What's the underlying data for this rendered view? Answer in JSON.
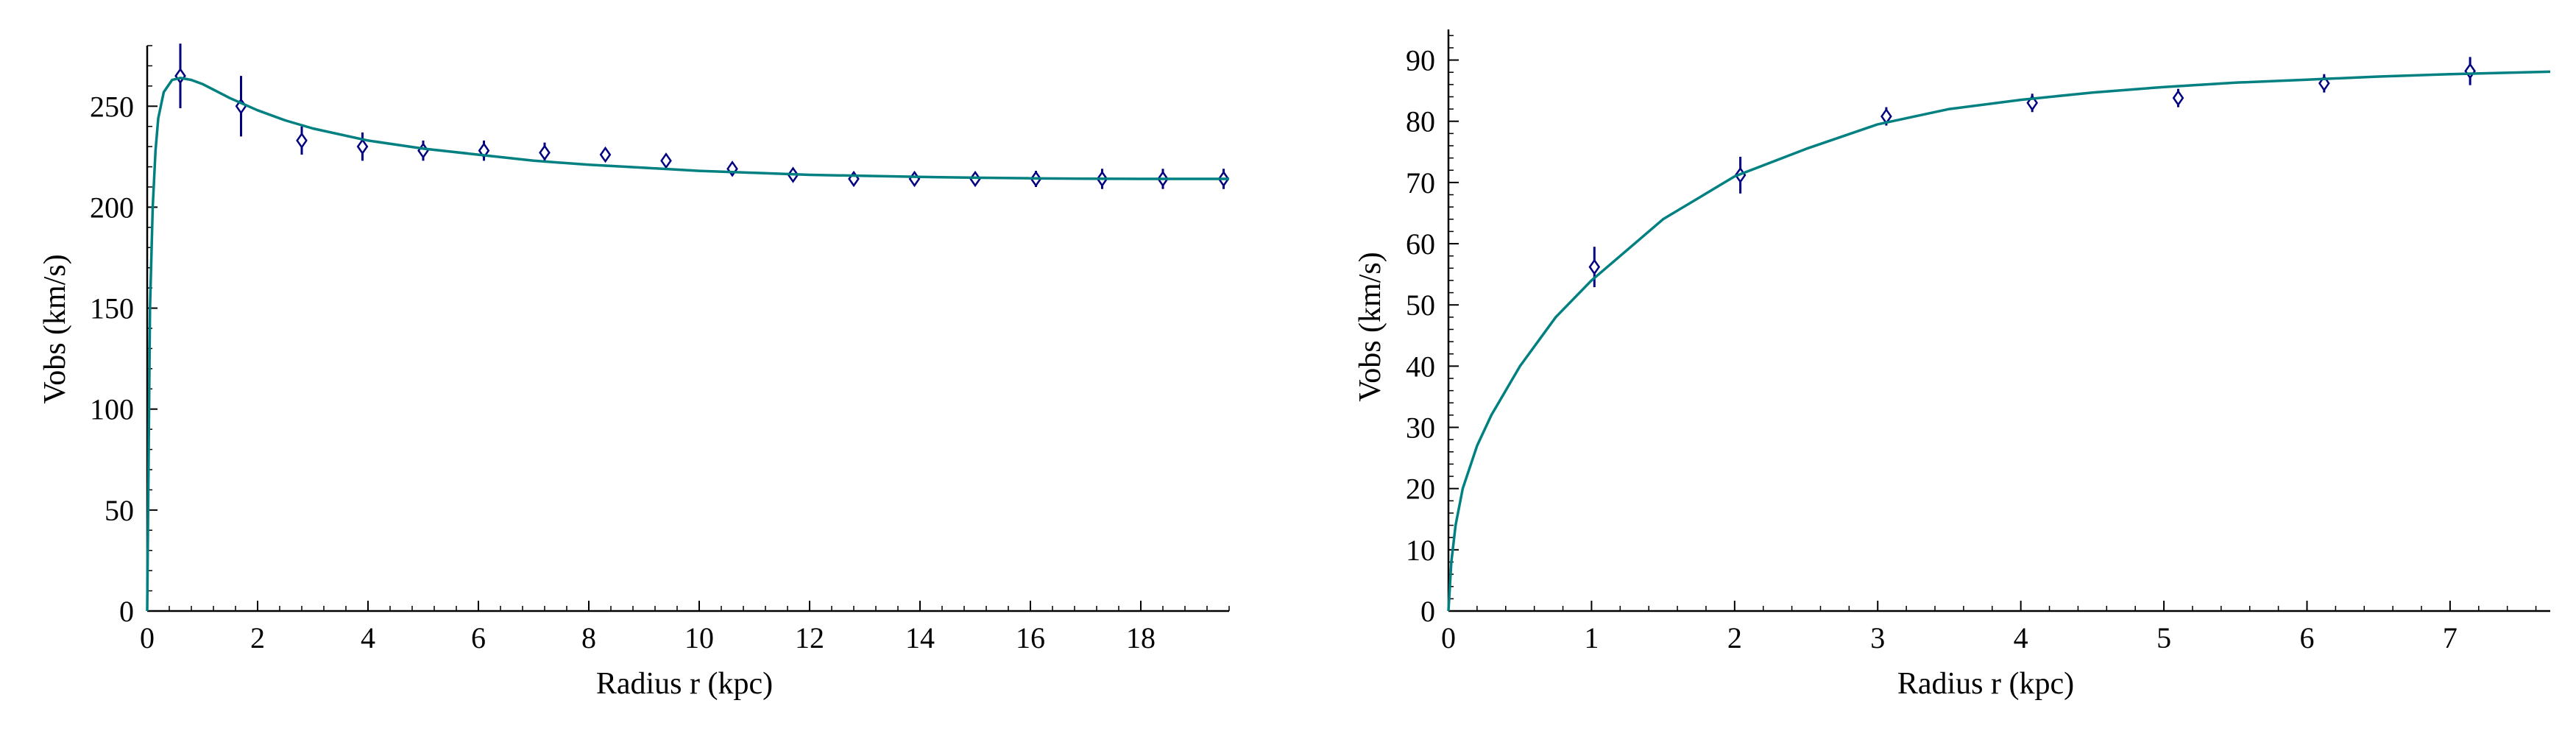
{
  "colors": {
    "fit_curve": "#008080",
    "data_points": "#000080",
    "axes": "#000000"
  },
  "chart_data": [
    {
      "type": "scatter",
      "xlabel": "Radius  r  (kpc)",
      "ylabel": "Vobs  (km/s)",
      "xlim": [
        0,
        19.6
      ],
      "ylim": [
        0,
        280
      ],
      "x_ticks": [
        0,
        2,
        4,
        6,
        8,
        10,
        12,
        14,
        16,
        18
      ],
      "y_ticks": [
        0,
        50,
        100,
        150,
        200,
        250
      ],
      "grid": false,
      "legend": "none",
      "series": [
        {
          "kind": "observed",
          "marker": "diamond",
          "error_bars": true,
          "points": [
            {
              "x": 0.6,
              "y": 265,
              "err": 16
            },
            {
              "x": 1.7,
              "y": 250,
              "err": 15
            },
            {
              "x": 2.8,
              "y": 233,
              "err": 7
            },
            {
              "x": 3.9,
              "y": 230,
              "err": 7
            },
            {
              "x": 5.0,
              "y": 228,
              "err": 5
            },
            {
              "x": 6.1,
              "y": 228,
              "err": 5
            },
            {
              "x": 7.2,
              "y": 227,
              "err": 5
            },
            {
              "x": 8.3,
              "y": 226,
              "err": 2
            },
            {
              "x": 9.4,
              "y": 223,
              "err": 3
            },
            {
              "x": 10.6,
              "y": 219,
              "err": 2
            },
            {
              "x": 11.7,
              "y": 216,
              "err": 2
            },
            {
              "x": 12.8,
              "y": 214,
              "err": 2
            },
            {
              "x": 13.9,
              "y": 214,
              "err": 2
            },
            {
              "x": 15.0,
              "y": 214,
              "err": 3
            },
            {
              "x": 16.1,
              "y": 214,
              "err": 4
            },
            {
              "x": 17.3,
              "y": 214,
              "err": 5
            },
            {
              "x": 18.4,
              "y": 214,
              "err": 5
            },
            {
              "x": 19.5,
              "y": 214,
              "err": 5
            }
          ]
        },
        {
          "kind": "fit",
          "line": true,
          "points": [
            {
              "x": 0,
              "y": 0
            },
            {
              "x": 0.05,
              "y": 150
            },
            {
              "x": 0.1,
              "y": 200
            },
            {
              "x": 0.15,
              "y": 228
            },
            {
              "x": 0.2,
              "y": 244
            },
            {
              "x": 0.3,
              "y": 257
            },
            {
              "x": 0.45,
              "y": 263
            },
            {
              "x": 0.6,
              "y": 264
            },
            {
              "x": 0.8,
              "y": 263
            },
            {
              "x": 1.0,
              "y": 261
            },
            {
              "x": 1.5,
              "y": 254
            },
            {
              "x": 2.0,
              "y": 248
            },
            {
              "x": 2.5,
              "y": 243
            },
            {
              "x": 3.0,
              "y": 239
            },
            {
              "x": 4.0,
              "y": 233
            },
            {
              "x": 5.0,
              "y": 229
            },
            {
              "x": 6.0,
              "y": 226
            },
            {
              "x": 7.0,
              "y": 223
            },
            {
              "x": 8.0,
              "y": 221
            },
            {
              "x": 9.0,
              "y": 219.5
            },
            {
              "x": 10.0,
              "y": 218
            },
            {
              "x": 11.0,
              "y": 217
            },
            {
              "x": 12.0,
              "y": 216
            },
            {
              "x": 13.0,
              "y": 215.5
            },
            {
              "x": 14.0,
              "y": 215
            },
            {
              "x": 15.0,
              "y": 214.6
            },
            {
              "x": 16.0,
              "y": 214.3
            },
            {
              "x": 17.0,
              "y": 214.1
            },
            {
              "x": 18.0,
              "y": 214
            },
            {
              "x": 19.0,
              "y": 214
            },
            {
              "x": 19.6,
              "y": 214
            }
          ]
        }
      ]
    },
    {
      "type": "scatter",
      "xlabel": "Radius  r  (kpc)",
      "ylabel": "Vobs  (km/s)",
      "xlim": [
        0,
        7.7
      ],
      "ylim": [
        0,
        95
      ],
      "x_ticks": [
        0,
        1,
        2,
        3,
        4,
        5,
        6,
        7
      ],
      "y_ticks": [
        0,
        10,
        20,
        30,
        40,
        50,
        60,
        70,
        80,
        90
      ],
      "grid": false,
      "legend": "none",
      "series": [
        {
          "kind": "observed",
          "marker": "diamond",
          "error_bars": true,
          "points": [
            {
              "x": 1.02,
              "y": 56.2,
              "err": 3.3
            },
            {
              "x": 2.04,
              "y": 71.2,
              "err": 3.0
            },
            {
              "x": 3.06,
              "y": 80.8,
              "err": 1.5
            },
            {
              "x": 4.08,
              "y": 83.0,
              "err": 1.5
            },
            {
              "x": 5.1,
              "y": 83.8,
              "err": 1.5
            },
            {
              "x": 6.12,
              "y": 86.2,
              "err": 1.5
            },
            {
              "x": 7.14,
              "y": 88.2,
              "err": 2.3
            }
          ]
        },
        {
          "kind": "fit",
          "line": true,
          "points": [
            {
              "x": 0,
              "y": 0
            },
            {
              "x": 0.02,
              "y": 8
            },
            {
              "x": 0.05,
              "y": 14
            },
            {
              "x": 0.1,
              "y": 20
            },
            {
              "x": 0.2,
              "y": 27
            },
            {
              "x": 0.3,
              "y": 32
            },
            {
              "x": 0.5,
              "y": 40
            },
            {
              "x": 0.75,
              "y": 48
            },
            {
              "x": 1.0,
              "y": 54
            },
            {
              "x": 1.25,
              "y": 59
            },
            {
              "x": 1.5,
              "y": 64
            },
            {
              "x": 1.75,
              "y": 67.5
            },
            {
              "x": 2.0,
              "y": 71
            },
            {
              "x": 2.5,
              "y": 75.5
            },
            {
              "x": 3.0,
              "y": 79.5
            },
            {
              "x": 3.5,
              "y": 82
            },
            {
              "x": 4.0,
              "y": 83.5
            },
            {
              "x": 4.5,
              "y": 84.7
            },
            {
              "x": 5.0,
              "y": 85.6
            },
            {
              "x": 5.5,
              "y": 86.3
            },
            {
              "x": 6.0,
              "y": 86.8
            },
            {
              "x": 6.5,
              "y": 87.3
            },
            {
              "x": 7.0,
              "y": 87.7
            },
            {
              "x": 7.7,
              "y": 88.1
            }
          ]
        }
      ]
    }
  ]
}
